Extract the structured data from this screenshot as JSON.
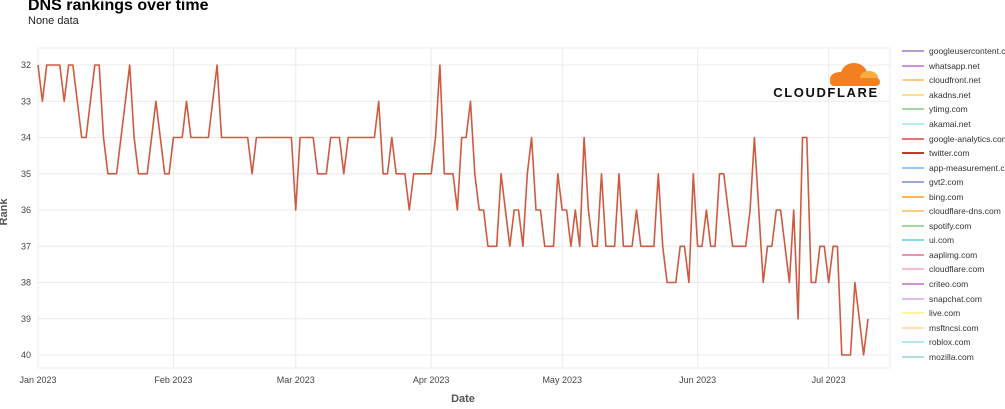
{
  "page": {
    "title": "DNS rankings over time",
    "subtitle": "None data"
  },
  "logo": {
    "text": "CLOUDFLARE",
    "cloud_color": "#f38020",
    "cloud_light_color": "#faad3f"
  },
  "colors": {
    "line": "#d05a40",
    "grid": "#ececec"
  },
  "legend": {
    "items": [
      {
        "label": "googleusercontent.com",
        "color": "#b39ddb"
      },
      {
        "label": "whatsapp.net",
        "color": "#ce93d8"
      },
      {
        "label": "cloudfront.net",
        "color": "#ffcc80"
      },
      {
        "label": "akadns.net",
        "color": "#ffe082"
      },
      {
        "label": "ytimg.com",
        "color": "#a5d6a7"
      },
      {
        "label": "akamai.net",
        "color": "#b2ebf2"
      },
      {
        "label": "google-analytics.com",
        "color": "#e57373"
      },
      {
        "label": "twitter.com",
        "color": "#c0392b"
      },
      {
        "label": "app-measurement.com",
        "color": "#90caf9"
      },
      {
        "label": "gvt2.com",
        "color": "#9fa8da"
      },
      {
        "label": "bing.com",
        "color": "#ffb74d"
      },
      {
        "label": "cloudflare-dns.com",
        "color": "#ffcc80"
      },
      {
        "label": "spotify.com",
        "color": "#a5d6a7"
      },
      {
        "label": "ui.com",
        "color": "#80deea"
      },
      {
        "label": "aaplimg.com",
        "color": "#f48fb1"
      },
      {
        "label": "cloudflare.com",
        "color": "#f8bbd0"
      },
      {
        "label": "criteo.com",
        "color": "#ce93d8"
      },
      {
        "label": "snapchat.com",
        "color": "#e1bee7"
      },
      {
        "label": "live.com",
        "color": "#fff59d"
      },
      {
        "label": "msftncsi.com",
        "color": "#ffe0b2"
      },
      {
        "label": "roblox.com",
        "color": "#b3e5fc"
      },
      {
        "label": "mozilla.com",
        "color": "#b2dfdb"
      }
    ]
  },
  "chart_data": {
    "type": "line",
    "title": "DNS rankings over time",
    "subtitle": "None data",
    "xlabel": "Date",
    "ylabel": "Rank",
    "y_reversed": true,
    "ylim": [
      32,
      40
    ],
    "y_ticks": [
      32,
      33,
      34,
      35,
      36,
      37,
      38,
      39,
      40
    ],
    "x_start": "2023-01-01",
    "x_end": "2023-07-10",
    "x_ticks": [
      {
        "date": "2023-01-01",
        "label": "Jan 2023"
      },
      {
        "date": "2023-02-01",
        "label": "Feb 2023"
      },
      {
        "date": "2023-03-01",
        "label": "Mar 2023"
      },
      {
        "date": "2023-04-01",
        "label": "Apr 2023"
      },
      {
        "date": "2023-05-01",
        "label": "May 2023"
      },
      {
        "date": "2023-06-01",
        "label": "Jun 2023"
      },
      {
        "date": "2023-07-01",
        "label": "Jul 2023"
      }
    ],
    "grid": true,
    "legend_position": "right",
    "series": [
      {
        "name": "twitter.com",
        "color": "#d05a40",
        "x": [
          "2023-01-01",
          "2023-01-02",
          "2023-01-03",
          "2023-01-04",
          "2023-01-05",
          "2023-01-06",
          "2023-01-07",
          "2023-01-08",
          "2023-01-09",
          "2023-01-10",
          "2023-01-11",
          "2023-01-12",
          "2023-01-13",
          "2023-01-14",
          "2023-01-15",
          "2023-01-16",
          "2023-01-17",
          "2023-01-18",
          "2023-01-19",
          "2023-01-20",
          "2023-01-21",
          "2023-01-22",
          "2023-01-23",
          "2023-01-24",
          "2023-01-25",
          "2023-01-26",
          "2023-01-27",
          "2023-01-28",
          "2023-01-29",
          "2023-01-30",
          "2023-01-31",
          "2023-02-01",
          "2023-02-02",
          "2023-02-03",
          "2023-02-04",
          "2023-02-05",
          "2023-02-06",
          "2023-02-07",
          "2023-02-08",
          "2023-02-09",
          "2023-02-10",
          "2023-02-11",
          "2023-02-12",
          "2023-02-13",
          "2023-02-14",
          "2023-02-15",
          "2023-02-16",
          "2023-02-17",
          "2023-02-18",
          "2023-02-19",
          "2023-02-20",
          "2023-02-21",
          "2023-02-22",
          "2023-02-23",
          "2023-02-24",
          "2023-02-25",
          "2023-02-26",
          "2023-02-27",
          "2023-02-28",
          "2023-03-01",
          "2023-03-02",
          "2023-03-03",
          "2023-03-04",
          "2023-03-05",
          "2023-03-06",
          "2023-03-07",
          "2023-03-08",
          "2023-03-09",
          "2023-03-10",
          "2023-03-11",
          "2023-03-12",
          "2023-03-13",
          "2023-03-14",
          "2023-03-15",
          "2023-03-16",
          "2023-03-17",
          "2023-03-18",
          "2023-03-19",
          "2023-03-20",
          "2023-03-21",
          "2023-03-22",
          "2023-03-23",
          "2023-03-24",
          "2023-03-25",
          "2023-03-26",
          "2023-03-27",
          "2023-03-28",
          "2023-03-29",
          "2023-03-30",
          "2023-03-31",
          "2023-04-01",
          "2023-04-02",
          "2023-04-03",
          "2023-04-04",
          "2023-04-05",
          "2023-04-06",
          "2023-04-07",
          "2023-04-08",
          "2023-04-09",
          "2023-04-10",
          "2023-04-11",
          "2023-04-12",
          "2023-04-13",
          "2023-04-14",
          "2023-04-15",
          "2023-04-16",
          "2023-04-17",
          "2023-04-18",
          "2023-04-19",
          "2023-04-20",
          "2023-04-21",
          "2023-04-22",
          "2023-04-23",
          "2023-04-24",
          "2023-04-25",
          "2023-04-26",
          "2023-04-27",
          "2023-04-28",
          "2023-04-29",
          "2023-04-30",
          "2023-05-01",
          "2023-05-02",
          "2023-05-03",
          "2023-05-04",
          "2023-05-05",
          "2023-05-06",
          "2023-05-07",
          "2023-05-08",
          "2023-05-09",
          "2023-05-10",
          "2023-05-11",
          "2023-05-12",
          "2023-05-13",
          "2023-05-14",
          "2023-05-15",
          "2023-05-16",
          "2023-05-17",
          "2023-05-18",
          "2023-05-19",
          "2023-05-20",
          "2023-05-21",
          "2023-05-22",
          "2023-05-23",
          "2023-05-24",
          "2023-05-25",
          "2023-05-26",
          "2023-05-27",
          "2023-05-28",
          "2023-05-29",
          "2023-05-30",
          "2023-05-31",
          "2023-06-01",
          "2023-06-02",
          "2023-06-03",
          "2023-06-04",
          "2023-06-05",
          "2023-06-06",
          "2023-06-07",
          "2023-06-08",
          "2023-06-09",
          "2023-06-10",
          "2023-06-11",
          "2023-06-12",
          "2023-06-13",
          "2023-06-14",
          "2023-06-15",
          "2023-06-16",
          "2023-06-17",
          "2023-06-18",
          "2023-06-19",
          "2023-06-20",
          "2023-06-21",
          "2023-06-22",
          "2023-06-23",
          "2023-06-24",
          "2023-06-25",
          "2023-06-26",
          "2023-06-27",
          "2023-06-28",
          "2023-06-29",
          "2023-06-30",
          "2023-07-01",
          "2023-07-02",
          "2023-07-03",
          "2023-07-04",
          "2023-07-05",
          "2023-07-06",
          "2023-07-07",
          "2023-07-08",
          "2023-07-09",
          "2023-07-10"
        ],
        "y": [
          32,
          33,
          32,
          32,
          32,
          32,
          33,
          32,
          32,
          33,
          34,
          34,
          33,
          32,
          32,
          34,
          35,
          35,
          35,
          34,
          33,
          32,
          34,
          35,
          35,
          35,
          34,
          33,
          34,
          35,
          35,
          34,
          34,
          34,
          33,
          34,
          34,
          34,
          34,
          34,
          33,
          32,
          34,
          34,
          34,
          34,
          34,
          34,
          34,
          35,
          34,
          34,
          34,
          34,
          34,
          34,
          34,
          34,
          34,
          36,
          34,
          34,
          34,
          34,
          35,
          35,
          35,
          34,
          34,
          34,
          35,
          34,
          34,
          34,
          34,
          34,
          34,
          34,
          33,
          35,
          35,
          34,
          35,
          35,
          35,
          36,
          35,
          35,
          35,
          35,
          35,
          34,
          32,
          35,
          35,
          35,
          36,
          34,
          34,
          33,
          35,
          36,
          36,
          37,
          37,
          37,
          35,
          36,
          37,
          36,
          36,
          37,
          35,
          34,
          36,
          36,
          37,
          37,
          37,
          35,
          36,
          36,
          37,
          36,
          37,
          34,
          36,
          37,
          37,
          35,
          37,
          37,
          37,
          35,
          37,
          37,
          37,
          36,
          37,
          37,
          37,
          37,
          35,
          37,
          38,
          38,
          38,
          37,
          37,
          38,
          35,
          37,
          37,
          36,
          37,
          37,
          35,
          35,
          36,
          37,
          37,
          37,
          37,
          36,
          34,
          36,
          38,
          37,
          37,
          36,
          36,
          37,
          38,
          36,
          39,
          34,
          34,
          38,
          38,
          37,
          37,
          38,
          37,
          37,
          40,
          40,
          40,
          38,
          39,
          40,
          39
        ]
      }
    ]
  }
}
